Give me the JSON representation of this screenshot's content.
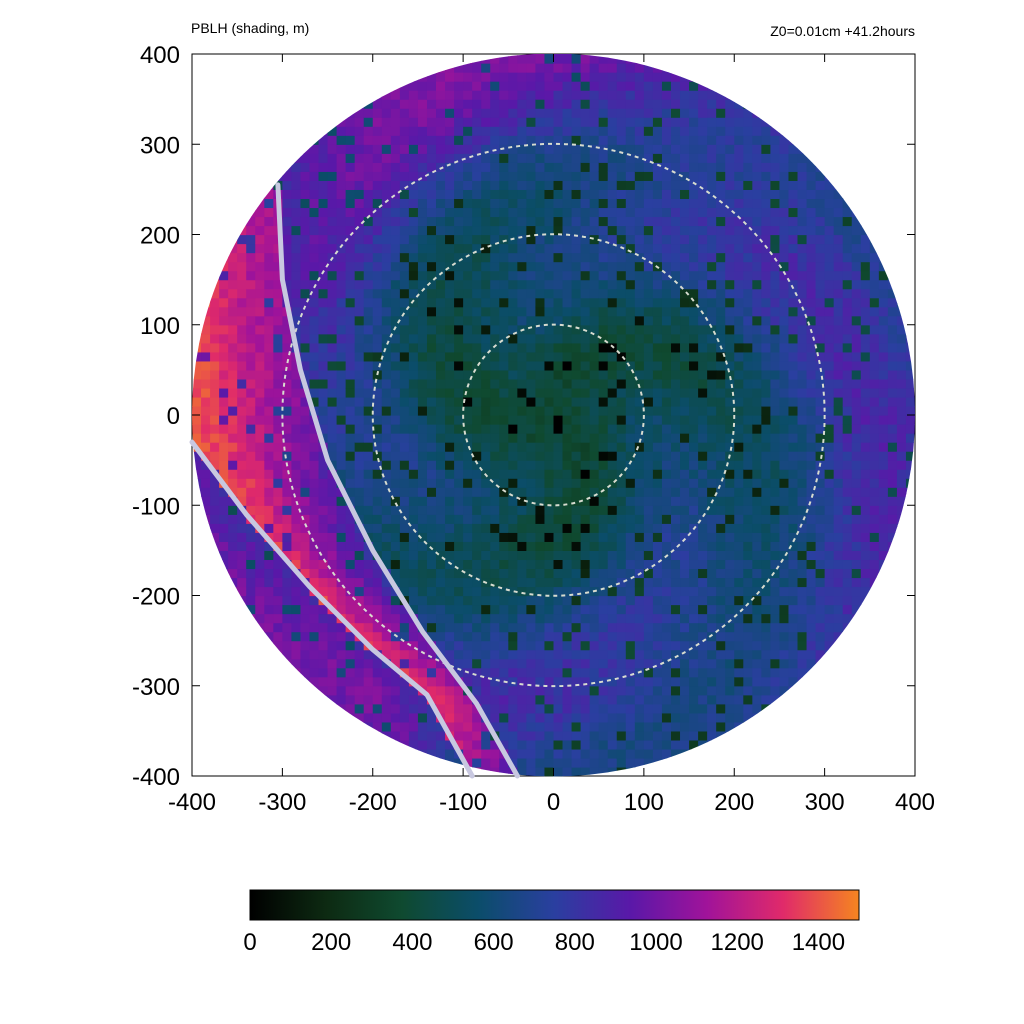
{
  "chart_data": {
    "type": "heatmap",
    "title_left": "PBLH (shading, m)",
    "title_right": "Z0=0.01cm  +41.2hours",
    "xlim": [
      -400,
      400
    ],
    "ylim": [
      -400,
      400
    ],
    "x_ticks": [
      "-400",
      "-300",
      "-200",
      "-100",
      "0",
      "100",
      "200",
      "300",
      "400"
    ],
    "y_ticks": [
      "400",
      "300",
      "200",
      "100",
      "0",
      "-100",
      "-200",
      "-300",
      "-400"
    ],
    "domain_radius": 400,
    "range_rings": [
      100,
      200,
      300
    ],
    "colorbar": {
      "min": 0,
      "max": 1500,
      "ticks": [
        "0",
        "200",
        "400",
        "600",
        "800",
        "1000",
        "1200",
        "1400"
      ],
      "colors": [
        "#000000",
        "#0d2a12",
        "#0f4a30",
        "#0b4d6a",
        "#2a3fa0",
        "#5a18a8",
        "#a0139a",
        "#e02a6a",
        "#f58520"
      ]
    },
    "field_summary": {
      "center_value": 350,
      "typical_inner_value": 450,
      "typical_outer_value": 750,
      "max_value": 1450
    },
    "frontal_lines": [
      {
        "points": [
          [
            -305,
            255
          ],
          [
            -300,
            150
          ],
          [
            -280,
            50
          ],
          [
            -250,
            -50
          ],
          [
            -200,
            -150
          ],
          [
            -145,
            -240
          ],
          [
            -85,
            -320
          ],
          [
            -40,
            -400
          ]
        ]
      },
      {
        "points": [
          [
            -400,
            -30
          ],
          [
            -340,
            -110
          ],
          [
            -270,
            -190
          ],
          [
            -200,
            -260
          ],
          [
            -140,
            -310
          ],
          [
            -90,
            -400
          ]
        ]
      }
    ],
    "colors": {
      "ring_stroke": "#d8dcd0",
      "frontal_line": "#c8c8e0"
    }
  }
}
